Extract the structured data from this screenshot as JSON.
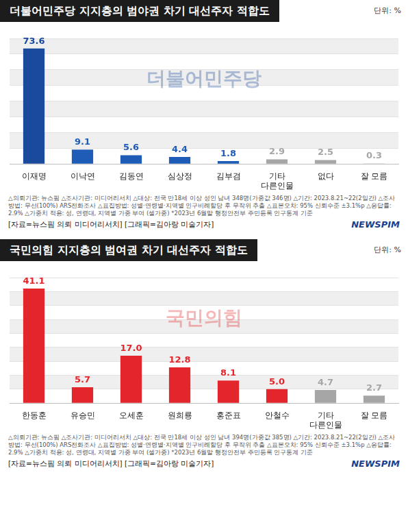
{
  "chart_data": [
    {
      "type": "bar",
      "title": "더불어민주당 지지층의 범야권 차기 대선주자 적합도",
      "unit": "단위: %",
      "watermark": "더불어민주당",
      "categories": [
        "이재명",
        "이낙연",
        "김동연",
        "심상정",
        "김부겸",
        "기타 다른인물",
        "없다",
        "잘 모름"
      ],
      "values": [
        73.6,
        9.1,
        5.6,
        4.4,
        1.8,
        2.9,
        2.5,
        0.3
      ],
      "value_labels": [
        "73.6",
        "9.1",
        "5.6",
        "4.4",
        "1.8",
        "2.9",
        "2.5",
        "0.3"
      ],
      "colors": [
        "#1a4a9c",
        "#1f5cb8",
        "#1f5cb8",
        "#1f5cb8",
        "#1f5cb8",
        "#a6a6a6",
        "#a6a6a6",
        "#a6a6a6"
      ],
      "ylim": [
        0,
        80
      ],
      "yticks": [
        0,
        10,
        20,
        30,
        40,
        50,
        60,
        70,
        80
      ],
      "grid": true,
      "data_labels": true,
      "tick_labels": "x",
      "notes": "△의뢰기관: 뉴스핌 △조사기관: 미디어리서치 △대상: 전국 만18세 이상 성인 남녀 348명(가중값 346명) △기간: 2023.8.21~22(2일간) △조사방법: 무선(100%) ARS전화조사 △표집방법: 성별·연령별·지역별 인구비례할당 후 무작위 추출 △표본오차: 95% 신뢰수준 ±3.1%p △응답률: 2.9% △가중치 적용: 성, 연령대, 지역별 가중 부여 (셀가중) *2023년 6월말 행정안전부 주민등록 인구통계 기준",
      "source": "[자료=뉴스핌 의뢰 미디어리서치] [그래픽=김아랑 미술기자]",
      "logo": "NEWSPIM"
    },
    {
      "type": "bar",
      "title": "국민의힘 지지층의 범여권 차기 대선주자 적합도",
      "unit": "단위: %",
      "watermark": "국민의힘",
      "categories": [
        "한동훈",
        "유승민",
        "오세훈",
        "원희룡",
        "홍준표",
        "안철수",
        "기타 다른인물",
        "잘 모름"
      ],
      "values": [
        41.1,
        5.7,
        17.0,
        12.8,
        8.1,
        5.0,
        4.7,
        2.7
      ],
      "value_labels": [
        "41.1",
        "5.7",
        "17.0",
        "12.8",
        "8.1",
        "5.0",
        "4.7",
        "2.7"
      ],
      "colors": [
        "#e3262b",
        "#e3262b",
        "#e3262b",
        "#e3262b",
        "#e3262b",
        "#e3262b",
        "#a6a6a6",
        "#a6a6a6"
      ],
      "ylim": [
        0,
        45
      ],
      "yticks": [
        0,
        5,
        10,
        15,
        20,
        25,
        30,
        35,
        40,
        45
      ],
      "grid": true,
      "data_labels": true,
      "tick_labels": "x",
      "notes": "△의뢰기관: 뉴스핌 △조사기관: 미디어리서치 △대상: 전국 만18세 이상 성인 남녀 394명(가중값 385명) △기간: 2023.8.21~22(2일간) △조사방법: 무선(100%) ARS전화조사 △표집방법: 성별·연령별·지역별 인구비례할당 후 무작위 추출 △표본오차: 95% 신뢰수준 ±3.1%p △응답률: 2.9% △가중치 적용: 성, 연령대, 지역별 가중 부여 (셀가중) *2023년 6월말 행정안전부 주민등록 인구통계 기준",
      "source": "[자료=뉴스핌 의뢰 미디어리서치] [그래픽=김아랑 미술기자]",
      "logo": "NEWSPIM"
    }
  ]
}
